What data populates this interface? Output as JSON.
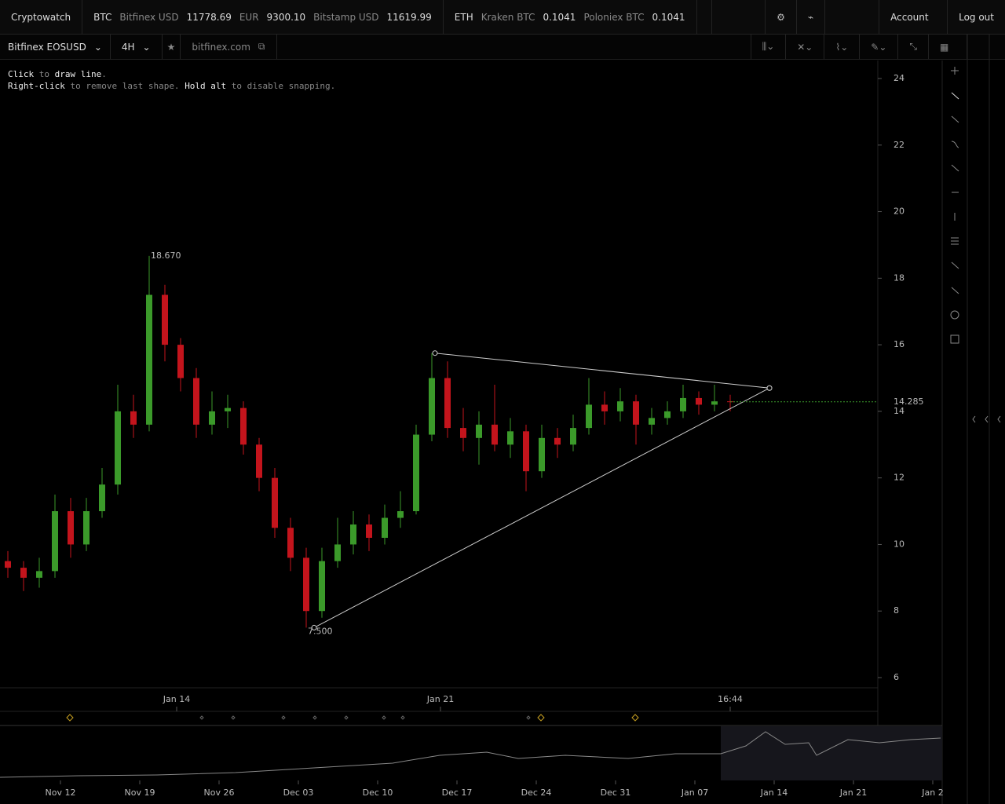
{
  "header": {
    "brand": "Cryptowatch",
    "btc": {
      "symbol": "BTC",
      "quotes": [
        {
          "name": "Bitfinex USD",
          "price": "11778.69"
        },
        {
          "name": "EUR",
          "price": "9300.10"
        },
        {
          "name": "Bitstamp USD",
          "price": "11619.99"
        }
      ]
    },
    "eth": {
      "symbol": "ETH",
      "quotes": [
        {
          "name": "Kraken BTC",
          "price": "0.1041"
        },
        {
          "name": "Poloniex BTC",
          "price": "0.1041"
        }
      ]
    },
    "account": "Account",
    "logout": "Log out"
  },
  "toolbar": {
    "market": "Bitfinex EOSUSD",
    "period": "4H",
    "exchange": "bitfinex.com"
  },
  "hint": {
    "line1": [
      "Click",
      "to",
      "draw line",
      "."
    ],
    "line2": [
      "Right-click",
      "to remove last shape.",
      "Hold alt",
      "to disable snapping."
    ]
  },
  "chart": {
    "type": "candlestick",
    "ylim": [
      6,
      24
    ],
    "yticks": [
      6,
      8,
      10,
      12,
      14,
      16,
      18,
      20,
      22,
      24
    ],
    "xticks": [
      {
        "value": 10.75,
        "label": "Jan 14"
      },
      {
        "value": 27.55,
        "label": "Jan 21"
      },
      {
        "value": 46,
        "label": "16:44"
      }
    ],
    "candles": [
      [
        9.5,
        9.8,
        9.0,
        9.3
      ],
      [
        9.3,
        9.5,
        8.6,
        9.0
      ],
      [
        9.0,
        9.6,
        8.7,
        9.2
      ],
      [
        9.2,
        11.5,
        9.0,
        11.0
      ],
      [
        11.0,
        11.4,
        9.6,
        10.0
      ],
      [
        10.0,
        11.4,
        9.8,
        11.0
      ],
      [
        11.0,
        12.3,
        10.8,
        11.8
      ],
      [
        11.8,
        14.8,
        11.5,
        14.0
      ],
      [
        14.0,
        14.5,
        13.2,
        13.6
      ],
      [
        13.6,
        18.67,
        13.4,
        17.5
      ],
      [
        17.5,
        17.8,
        15.5,
        16.0
      ],
      [
        16.0,
        16.2,
        14.6,
        15.0
      ],
      [
        15.0,
        15.3,
        13.2,
        13.6
      ],
      [
        13.6,
        14.6,
        13.3,
        14.0
      ],
      [
        14.0,
        14.5,
        13.5,
        14.1
      ],
      [
        14.1,
        14.3,
        12.7,
        13.0
      ],
      [
        13.0,
        13.2,
        11.6,
        12.0
      ],
      [
        12.0,
        12.3,
        10.2,
        10.5
      ],
      [
        10.5,
        10.8,
        9.2,
        9.6
      ],
      [
        9.6,
        9.9,
        7.5,
        8.0
      ],
      [
        8.0,
        9.9,
        7.8,
        9.5
      ],
      [
        9.5,
        10.8,
        9.3,
        10.0
      ],
      [
        10.0,
        11.0,
        9.7,
        10.6
      ],
      [
        10.6,
        10.9,
        9.8,
        10.2
      ],
      [
        10.2,
        11.2,
        10.0,
        10.8
      ],
      [
        10.8,
        11.6,
        10.5,
        11.0
      ],
      [
        11.0,
        13.6,
        10.9,
        13.3
      ],
      [
        13.3,
        15.75,
        13.1,
        15.0
      ],
      [
        15.0,
        15.5,
        13.2,
        13.5
      ],
      [
        13.5,
        14.1,
        12.8,
        13.2
      ],
      [
        13.2,
        14.0,
        12.4,
        13.6
      ],
      [
        13.6,
        14.8,
        12.8,
        13.0
      ],
      [
        13.0,
        13.8,
        12.6,
        13.4
      ],
      [
        13.4,
        13.6,
        11.6,
        12.2
      ],
      [
        12.2,
        13.6,
        12.0,
        13.2
      ],
      [
        13.2,
        13.5,
        12.6,
        13.0
      ],
      [
        13.0,
        13.9,
        12.8,
        13.5
      ],
      [
        13.5,
        15.0,
        13.3,
        14.2
      ],
      [
        14.2,
        14.6,
        13.6,
        14.0
      ],
      [
        14.0,
        14.7,
        13.7,
        14.3
      ],
      [
        14.3,
        14.5,
        13.0,
        13.6
      ],
      [
        13.6,
        14.1,
        13.3,
        13.8
      ],
      [
        13.8,
        14.3,
        13.6,
        14.0
      ],
      [
        14.0,
        14.8,
        13.8,
        14.4
      ],
      [
        14.4,
        14.6,
        13.9,
        14.2
      ],
      [
        14.2,
        14.8,
        14.0,
        14.3
      ],
      [
        14.3,
        14.5,
        14.0,
        14.285
      ]
    ],
    "up_color": "#3b9a2a",
    "down_color": "#c3141c",
    "extremes": [
      {
        "value": 18.67,
        "label": "18.670"
      },
      {
        "value": 7.5,
        "label": "7.500"
      }
    ],
    "last_price": 14.285,
    "trendlines": [
      {
        "from": [
          19.5,
          7.5
        ],
        "to": [
          48.5,
          14.7
        ]
      },
      {
        "from": [
          27.2,
          15.75
        ],
        "to": [
          48.5,
          14.7
        ]
      }
    ]
  },
  "navigator": {
    "labels": [
      "Nov 12",
      "Nov 19",
      "Nov 26",
      "Dec 03",
      "Dec 10",
      "Dec 17",
      "Dec 24",
      "Dec 31",
      "Jan 07",
      "Jan 14",
      "Jan 21",
      "Jan 2"
    ]
  }
}
